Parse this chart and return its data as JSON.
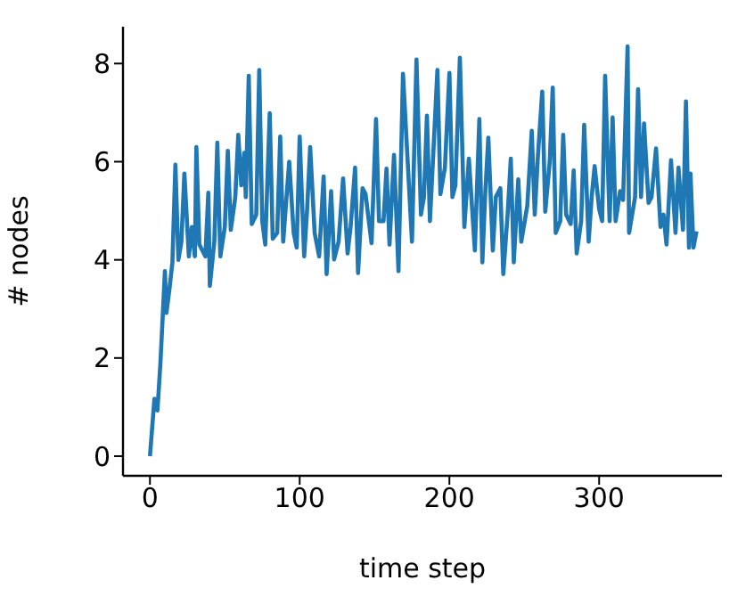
{
  "chart_data": {
    "type": "line",
    "xlabel": "time step",
    "ylabel": "# nodes",
    "xlim": [
      -18,
      382
    ],
    "ylim": [
      -0.4,
      8.75
    ],
    "xticks": [
      0,
      100,
      200,
      300
    ],
    "yticks": [
      0,
      2,
      4,
      6,
      8
    ],
    "grid": false,
    "legend": false,
    "marker": "none",
    "line_style": "solid",
    "x": [
      0,
      3,
      5,
      7,
      10,
      11,
      13,
      15,
      17,
      19,
      21,
      23,
      26,
      28,
      30,
      31,
      33,
      37,
      39,
      40,
      43,
      45,
      47,
      50,
      52,
      54,
      57,
      59,
      61,
      63,
      64,
      66,
      68,
      71,
      73,
      75,
      77,
      80,
      82,
      85,
      87,
      89,
      93,
      96,
      98,
      100,
      103,
      105,
      107,
      110,
      113,
      116,
      118,
      121,
      123,
      126,
      129,
      132,
      134,
      137,
      139,
      142,
      144,
      148,
      151,
      153,
      156,
      158,
      160,
      163,
      166,
      169,
      175,
      178,
      181,
      183,
      185,
      187,
      192,
      194,
      197,
      200,
      202,
      204,
      207,
      210,
      213,
      217,
      220,
      222,
      224,
      226,
      229,
      231,
      234,
      236,
      239,
      241,
      243,
      246,
      248,
      252,
      255,
      257,
      259,
      262,
      264,
      267,
      269,
      271,
      274,
      276,
      278,
      281,
      283,
      285,
      288,
      290,
      293,
      295,
      297,
      300,
      302,
      304,
      307,
      309,
      311,
      314,
      316,
      319,
      320,
      324,
      326,
      328,
      330,
      333,
      335,
      338,
      341,
      343,
      345,
      348,
      351,
      353,
      356,
      358,
      360,
      361,
      363,
      365
    ],
    "series": [
      {
        "color": "#1f77b4",
        "values": [
          0,
          1.17,
          0.93,
          1.9,
          3.77,
          2.92,
          3.4,
          3.95,
          5.94,
          4.0,
          4.37,
          5.76,
          4.07,
          4.67,
          4.07,
          6.3,
          4.31,
          4.07,
          5.37,
          3.47,
          4.37,
          6.39,
          4.07,
          4.67,
          6.22,
          4.61,
          5.28,
          6.55,
          5.52,
          6.18,
          5.28,
          7.75,
          4.73,
          4.92,
          7.87,
          4.79,
          4.31,
          6.99,
          4.43,
          4.55,
          6.51,
          4.37,
          6.0,
          4.55,
          4.25,
          6.51,
          4.07,
          5.04,
          6.3,
          4.55,
          4.07,
          5.7,
          3.71,
          5.4,
          4.01,
          4.37,
          5.66,
          4.13,
          4.67,
          5.88,
          3.73,
          5.46,
          5.34,
          4.34,
          6.87,
          4.79,
          4.79,
          5.86,
          4.31,
          6.14,
          3.77,
          7.79,
          4.37,
          8.08,
          4.92,
          5.28,
          6.94,
          4.79,
          7.87,
          5.34,
          5.88,
          7.81,
          5.28,
          5.52,
          8.12,
          4.67,
          6.06,
          4.19,
          6.87,
          3.95,
          5.4,
          6.49,
          4.19,
          5.28,
          5.46,
          3.71,
          4.98,
          6.06,
          3.95,
          5.64,
          4.37,
          5.1,
          6.63,
          4.92,
          6.06,
          7.43,
          4.98,
          6.0,
          7.51,
          4.55,
          4.79,
          6.55,
          4.92,
          4.73,
          5.82,
          4.13,
          4.79,
          6.75,
          4.37,
          5.28,
          5.91,
          5.04,
          4.79,
          7.75,
          4.79,
          6.9,
          4.79,
          5.4,
          5.22,
          8.35,
          4.55,
          5.28,
          7.48,
          5.28,
          6.78,
          5.16,
          5.28,
          6.27,
          4.67,
          4.92,
          4.31,
          6.03,
          4.55,
          5.88,
          4.61,
          7.23,
          4.25,
          5.76,
          4.25,
          4.58
        ]
      }
    ]
  }
}
